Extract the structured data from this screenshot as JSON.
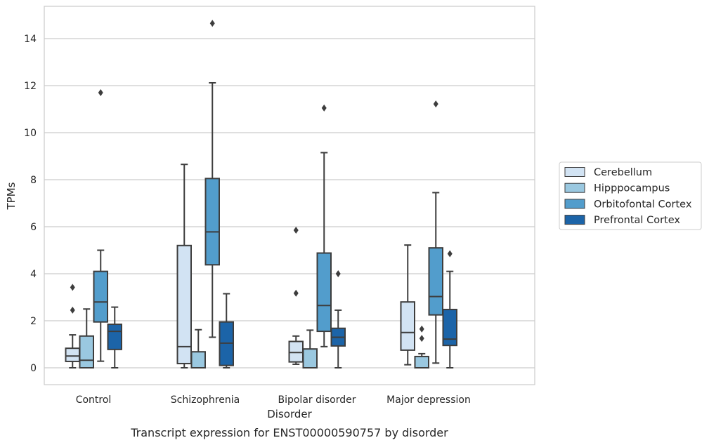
{
  "chart_data": {
    "type": "boxplot",
    "title": "",
    "xlabel": "Disorder",
    "ylabel": "TPMs",
    "caption": "Transcript expression for ENST00000590757 by disorder",
    "categories": [
      "Control",
      "Schizophrenia",
      "Bipolar disorder",
      "Major depression"
    ],
    "ylim": [
      -0.7,
      15.4
    ],
    "yticks": [
      0,
      2,
      4,
      6,
      8,
      10,
      12,
      14
    ],
    "grid": "horizontal",
    "legend_position": "right",
    "series": [
      {
        "name": "Cerebellum",
        "color": "#d2e3f3",
        "boxes": [
          {
            "whisker_low": 0.0,
            "q1": 0.27,
            "median": 0.5,
            "q3": 0.83,
            "whisker_high": 1.4,
            "outliers": [
              2.45,
              3.42
            ]
          },
          {
            "whisker_low": 0.0,
            "q1": 0.18,
            "median": 0.9,
            "q3": 5.2,
            "whisker_high": 8.65,
            "outliers": []
          },
          {
            "whisker_low": 0.15,
            "q1": 0.25,
            "median": 0.65,
            "q3": 1.12,
            "whisker_high": 1.35,
            "outliers": [
              3.17,
              5.85
            ]
          },
          {
            "whisker_low": 0.13,
            "q1": 0.75,
            "median": 1.5,
            "q3": 2.8,
            "whisker_high": 5.22,
            "outliers": []
          }
        ]
      },
      {
        "name": "Hipppocampus",
        "color": "#9ac8e0",
        "boxes": [
          {
            "whisker_low": 0.0,
            "q1": 0.0,
            "median": 0.32,
            "q3": 1.35,
            "whisker_high": 2.5,
            "outliers": []
          },
          {
            "whisker_low": 0.0,
            "q1": 0.0,
            "median": 0.0,
            "q3": 0.68,
            "whisker_high": 1.62,
            "outliers": []
          },
          {
            "whisker_low": 0.0,
            "q1": 0.0,
            "median": 0.0,
            "q3": 0.8,
            "whisker_high": 1.6,
            "outliers": []
          },
          {
            "whisker_low": 0.0,
            "q1": 0.0,
            "median": 0.0,
            "q3": 0.48,
            "whisker_high": 0.6,
            "outliers": [
              1.25,
              1.65
            ]
          }
        ]
      },
      {
        "name": "Orbitofontal Cortex",
        "color": "#529dcc",
        "boxes": [
          {
            "whisker_low": 0.28,
            "q1": 1.95,
            "median": 2.8,
            "q3": 4.1,
            "whisker_high": 5.0,
            "outliers": [
              11.7
            ]
          },
          {
            "whisker_low": 1.3,
            "q1": 4.38,
            "median": 5.78,
            "q3": 8.05,
            "whisker_high": 12.12,
            "outliers": [
              14.65
            ]
          },
          {
            "whisker_low": 0.9,
            "q1": 1.55,
            "median": 2.65,
            "q3": 4.88,
            "whisker_high": 9.15,
            "outliers": [
              11.05
            ]
          },
          {
            "whisker_low": 0.2,
            "q1": 2.25,
            "median": 3.03,
            "q3": 5.1,
            "whisker_high": 7.45,
            "outliers": [
              11.22
            ]
          }
        ]
      },
      {
        "name": "Prefrontal Cortex",
        "color": "#1c64a8",
        "boxes": [
          {
            "whisker_low": 0.0,
            "q1": 0.78,
            "median": 1.55,
            "q3": 1.85,
            "whisker_high": 2.58,
            "outliers": []
          },
          {
            "whisker_low": 0.0,
            "q1": 0.1,
            "median": 1.05,
            "q3": 1.95,
            "whisker_high": 3.15,
            "outliers": []
          },
          {
            "whisker_low": 0.0,
            "q1": 0.93,
            "median": 1.3,
            "q3": 1.68,
            "whisker_high": 2.45,
            "outliers": [
              4.0
            ]
          },
          {
            "whisker_low": 0.0,
            "q1": 0.95,
            "median": 1.22,
            "q3": 2.48,
            "whisker_high": 4.1,
            "outliers": [
              4.85
            ]
          }
        ]
      }
    ]
  }
}
